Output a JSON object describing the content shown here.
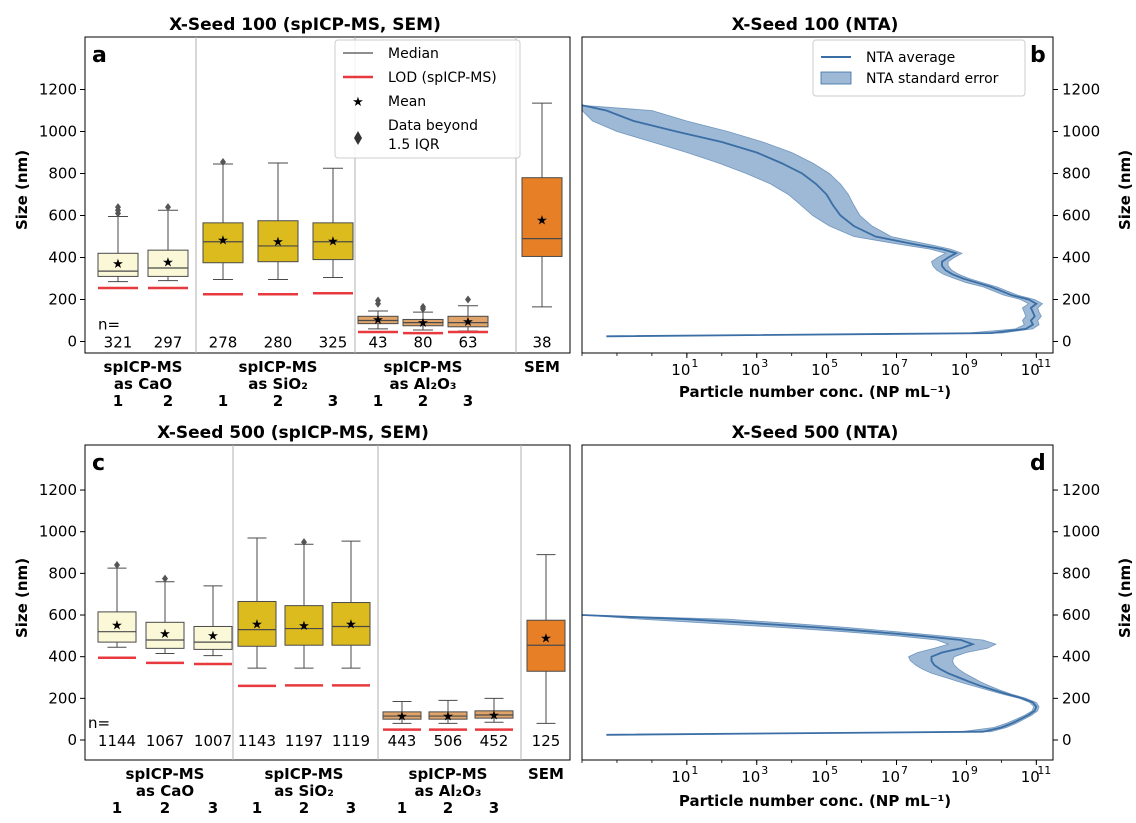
{
  "colors": {
    "cao": "#fbf8d8",
    "sio2": "#dcbb1e",
    "al2o3": "#e0a46a",
    "sem": "#e77f27",
    "lod": "#e8393e",
    "nta_line": "#3a6ea5",
    "nta_fill": "#9db9d5",
    "separator": "#b0b0b0"
  },
  "legend_box": {
    "median": "Median",
    "lod": "LOD (spICP-MS)",
    "mean": "Mean",
    "beyond_line1": "Data beyond",
    "beyond_line2": "1.5 IQR"
  },
  "legend_nta": {
    "average": "NTA average",
    "stderr": "NTA standard error"
  },
  "panels": {
    "a": {
      "label": "a",
      "title": "X-Seed 100 (spICP-MS, SEM)",
      "ylabel": "Size (nm)",
      "n_prefix": "n=",
      "yticks": [
        "0",
        "200",
        "400",
        "600",
        "800",
        "1000",
        "1200"
      ],
      "groups": [
        {
          "line1": "spICP-MS",
          "line2": "as CaO",
          "idx": [
            "1",
            "2"
          ]
        },
        {
          "line1": "spICP-MS",
          "line2": "as SiO₂",
          "idx": [
            "1",
            "2",
            "3"
          ]
        },
        {
          "line1": "spICP-MS",
          "line2": "as Al₂O₃",
          "idx": [
            "1",
            "2",
            "3"
          ]
        },
        {
          "line1": "SEM",
          "line2": "",
          "idx": []
        }
      ]
    },
    "b": {
      "label": "b",
      "title": "X-Seed 100 (NTA)",
      "xlabel": "Particle number conc. (NP mL⁻¹)",
      "ylabel": "Size (nm)",
      "yticks": [
        "0",
        "200",
        "400",
        "600",
        "800",
        "1000",
        "1200"
      ]
    },
    "c": {
      "label": "c",
      "title": "X-Seed 500 (spICP-MS, SEM)",
      "ylabel": "Size (nm)",
      "n_prefix": "n=",
      "yticks": [
        "0",
        "200",
        "400",
        "600",
        "800",
        "1000",
        "1200"
      ],
      "groups": [
        {
          "line1": "spICP-MS",
          "line2": "as CaO",
          "idx": [
            "1",
            "2",
            "3"
          ]
        },
        {
          "line1": "spICP-MS",
          "line2": "as SiO₂",
          "idx": [
            "1",
            "2",
            "3"
          ]
        },
        {
          "line1": "spICP-MS",
          "line2": "as Al₂O₃",
          "idx": [
            "1",
            "2",
            "3"
          ]
        },
        {
          "line1": "SEM",
          "line2": "",
          "idx": []
        }
      ]
    },
    "d": {
      "label": "d",
      "title": "X-Seed 500 (NTA)",
      "xlabel": "Particle number conc. (NP mL⁻¹)",
      "ylabel": "Size (nm)",
      "yticks": [
        "0",
        "200",
        "400",
        "600",
        "800",
        "1000",
        "1200"
      ]
    }
  },
  "chart_data": [
    {
      "panel": "a",
      "type": "box",
      "title": "X-Seed 100 (spICP-MS, SEM)",
      "ylabel": "Size (nm)",
      "ylim": [
        -50,
        1200
      ],
      "boxes": [
        {
          "group": "CaO",
          "index": "1",
          "n": "321",
          "q1": 310,
          "median": 335,
          "q3": 420,
          "whisker_low": 285,
          "whisker_high": 595,
          "mean": 375,
          "lod": 255,
          "outliers": [
            610,
            625,
            640
          ],
          "color": "cao"
        },
        {
          "group": "CaO",
          "index": "2",
          "n": "297",
          "q1": 310,
          "median": 350,
          "q3": 435,
          "whisker_low": 290,
          "whisker_high": 625,
          "mean": 380,
          "lod": 255,
          "outliers": [
            640
          ],
          "color": "cao"
        },
        {
          "group": "SiO2",
          "index": "1",
          "n": "278",
          "q1": 375,
          "median": 475,
          "q3": 565,
          "whisker_low": 295,
          "whisker_high": 845,
          "mean": 485,
          "lod": 225,
          "outliers": [
            855
          ],
          "color": "sio2"
        },
        {
          "group": "SiO2",
          "index": "2",
          "n": "280",
          "q1": 380,
          "median": 455,
          "q3": 575,
          "whisker_low": 295,
          "whisker_high": 850,
          "mean": 478,
          "lod": 225,
          "outliers": [],
          "color": "sio2"
        },
        {
          "group": "SiO2",
          "index": "3",
          "n": "325",
          "q1": 390,
          "median": 475,
          "q3": 565,
          "whisker_low": 305,
          "whisker_high": 825,
          "mean": 482,
          "lod": 230,
          "outliers": [],
          "color": "sio2"
        },
        {
          "group": "Al2O3",
          "index": "1",
          "n": "43",
          "q1": 85,
          "median": 100,
          "q3": 120,
          "whisker_low": 60,
          "whisker_high": 145,
          "mean": 108,
          "lod": 45,
          "outliers": [
            180,
            195
          ],
          "color": "al2o3"
        },
        {
          "group": "Al2O3",
          "index": "2",
          "n": "80",
          "q1": 75,
          "median": 90,
          "q3": 105,
          "whisker_low": 55,
          "whisker_high": 140,
          "mean": 94,
          "lod": 40,
          "outliers": [
            155,
            165
          ],
          "color": "al2o3"
        },
        {
          "group": "Al2O3",
          "index": "3",
          "n": "63",
          "q1": 70,
          "median": 90,
          "q3": 120,
          "whisker_low": 50,
          "whisker_high": 170,
          "mean": 97,
          "lod": 45,
          "outliers": [
            200
          ],
          "color": "al2o3"
        },
        {
          "group": "SEM",
          "index": "",
          "n": "38",
          "q1": 405,
          "median": 490,
          "q3": 780,
          "whisker_low": 165,
          "whisker_high": 1135,
          "mean": 580,
          "lod": null,
          "outliers": [],
          "color": "sem"
        }
      ]
    },
    {
      "panel": "b",
      "type": "area",
      "title": "X-Seed 100 (NTA)",
      "xlabel": "Particle number conc. (NP mL⁻¹)",
      "ylabel": "Size (nm)",
      "xscale": "log",
      "xlim": [
        0.01,
        300000000000
      ],
      "ylim": [
        -50,
        1200
      ],
      "xtick_exponents": [
        1,
        3,
        5,
        7,
        9,
        11
      ],
      "y": [
        25,
        40,
        60,
        80,
        100,
        120,
        140,
        160,
        180,
        200,
        220,
        240,
        260,
        280,
        300,
        320,
        340,
        360,
        380,
        400,
        420,
        440,
        460,
        480,
        500,
        550,
        600,
        650,
        700,
        750,
        800,
        850,
        900,
        950,
        1000,
        1050,
        1100,
        1125
      ],
      "x_mean": [
        0.05,
        5000000000,
        50000000000,
        80000000000,
        70000000000,
        90000000000,
        80000000000,
        70000000000,
        100000000000,
        60000000000,
        20000000000,
        10000000000,
        5000000000,
        2000000000,
        800000000,
        400000000,
        250000000,
        200000000,
        200000000,
        300000000,
        500000000,
        200000000,
        40000000,
        10000000,
        2500000,
        600000,
        250000,
        150000,
        100000,
        50000,
        20000,
        5000,
        1000,
        100,
        5,
        0.3,
        0.05,
        0.01
      ],
      "x_low": [
        0.05,
        1000000000,
        25000000000,
        45000000000,
        40000000000,
        50000000000,
        45000000000,
        40000000000,
        60000000000,
        35000000000,
        12000000000,
        6000000000,
        3000000000,
        1000000000,
        450000000,
        220000000,
        140000000,
        110000000,
        100000000,
        150000000,
        250000000,
        90000000,
        15000000,
        3000000,
        600000,
        120000,
        40000,
        18000,
        8000,
        2500,
        500,
        80,
        10,
        1,
        0.1,
        0.02,
        0.01,
        0.01
      ],
      "x_high": [
        0.05,
        10000000000,
        80000000000,
        120000000000,
        110000000000,
        140000000000,
        120000000000,
        110000000000,
        150000000000,
        90000000000,
        30000000000,
        15000000000,
        7500000000,
        3000000000,
        1200000000,
        600000000,
        380000000,
        300000000,
        300000000,
        450000000,
        750000000,
        350000000,
        100000000,
        25000000,
        7000000,
        2000000,
        900000,
        600000,
        420000,
        250000,
        120000,
        40000,
        10000,
        1500,
        150,
        10,
        1,
        0.01
      ]
    },
    {
      "panel": "c",
      "type": "box",
      "title": "X-Seed 500 (spICP-MS, SEM)",
      "ylabel": "Size (nm)",
      "ylim": [
        -50,
        1200
      ],
      "boxes": [
        {
          "group": "CaO",
          "index": "1",
          "n": "1144",
          "q1": 470,
          "median": 520,
          "q3": 615,
          "whisker_low": 445,
          "whisker_high": 825,
          "mean": 555,
          "lod": 395,
          "outliers": [
            840
          ],
          "color": "cao"
        },
        {
          "group": "CaO",
          "index": "2",
          "n": "1067",
          "q1": 440,
          "median": 480,
          "q3": 565,
          "whisker_low": 415,
          "whisker_high": 760,
          "mean": 513,
          "lod": 370,
          "outliers": [
            775
          ],
          "color": "cao"
        },
        {
          "group": "CaO",
          "index": "3",
          "n": "1007",
          "q1": 435,
          "median": 470,
          "q3": 545,
          "whisker_low": 405,
          "whisker_high": 740,
          "mean": 503,
          "lod": 365,
          "outliers": [],
          "color": "cao"
        },
        {
          "group": "SiO2",
          "index": "1",
          "n": "1143",
          "q1": 450,
          "median": 530,
          "q3": 665,
          "whisker_low": 345,
          "whisker_high": 970,
          "mean": 560,
          "lod": 260,
          "outliers": [],
          "color": "sio2"
        },
        {
          "group": "SiO2",
          "index": "2",
          "n": "1197",
          "q1": 455,
          "median": 535,
          "q3": 645,
          "whisker_low": 345,
          "whisker_high": 940,
          "mean": 553,
          "lod": 262,
          "outliers": [
            950
          ],
          "color": "sio2"
        },
        {
          "group": "SiO2",
          "index": "3",
          "n": "1119",
          "q1": 455,
          "median": 545,
          "q3": 660,
          "whisker_low": 345,
          "whisker_high": 955,
          "mean": 560,
          "lod": 262,
          "outliers": [],
          "color": "sio2"
        },
        {
          "group": "Al2O3",
          "index": "1",
          "n": "443",
          "q1": 100,
          "median": 115,
          "q3": 135,
          "whisker_low": 80,
          "whisker_high": 185,
          "mean": 118,
          "lod": 50,
          "outliers": [],
          "color": "al2o3"
        },
        {
          "group": "Al2O3",
          "index": "2",
          "n": "506",
          "q1": 100,
          "median": 115,
          "q3": 135,
          "whisker_low": 80,
          "whisker_high": 190,
          "mean": 118,
          "lod": 50,
          "outliers": [],
          "color": "al2o3"
        },
        {
          "group": "Al2O3",
          "index": "3",
          "n": "452",
          "q1": 105,
          "median": 120,
          "q3": 140,
          "whisker_low": 85,
          "whisker_high": 200,
          "mean": 122,
          "lod": 50,
          "outliers": [],
          "color": "al2o3"
        },
        {
          "group": "SEM",
          "index": "",
          "n": "125",
          "q1": 330,
          "median": 455,
          "q3": 575,
          "whisker_low": 80,
          "whisker_high": 890,
          "mean": 493,
          "lod": null,
          "outliers": [],
          "color": "sem"
        }
      ]
    },
    {
      "panel": "d",
      "type": "area",
      "title": "X-Seed 500 (NTA)",
      "xlabel": "Particle number conc. (NP mL⁻¹)",
      "ylabel": "Size (nm)",
      "xscale": "log",
      "xlim": [
        0.01,
        300000000000
      ],
      "ylim": [
        -50,
        1200
      ],
      "xtick_exponents": [
        1,
        3,
        5,
        7,
        9,
        11
      ],
      "y": [
        25,
        40,
        60,
        80,
        100,
        120,
        140,
        160,
        180,
        200,
        220,
        240,
        260,
        280,
        300,
        320,
        340,
        360,
        380,
        400,
        420,
        440,
        460,
        480,
        500,
        520,
        540,
        560,
        580,
        600
      ],
      "x_mean": [
        0.05,
        3000000000,
        10000000000,
        20000000000,
        35000000000,
        60000000000,
        90000000000,
        100000000000,
        80000000000,
        40000000000,
        15000000000,
        6000000000,
        2500000000,
        1200000000,
        600000000,
        300000000,
        180000000,
        120000000,
        100000000,
        100000000,
        200000000,
        700000000,
        1500000000,
        700000000,
        50000000,
        2000000,
        60000,
        1000,
        10,
        0.01
      ],
      "x_low": [
        0.05,
        700000000,
        6000000000,
        14000000000,
        26000000000,
        48000000000,
        75000000000,
        85000000000,
        65000000000,
        32000000000,
        11000000000,
        4000000000,
        1500000000,
        600000000,
        250000000,
        100000000,
        55000000,
        35000000,
        25000000,
        22000000,
        40000000,
        120000000,
        300000000,
        140000000,
        10000000,
        300000,
        5000,
        50,
        0.5,
        0.01
      ],
      "x_high": [
        0.05,
        5000000000,
        14000000000,
        27000000000,
        45000000000,
        75000000000,
        110000000000,
        120000000000,
        100000000000,
        50000000000,
        20000000000,
        9000000000,
        4500000000,
        2500000000,
        1500000000,
        900000000,
        600000000,
        450000000,
        400000000,
        450000000,
        1000000000,
        4000000000,
        7000000000,
        3000000000,
        200000000,
        10000000,
        400000,
        10000,
        150,
        0.01
      ]
    }
  ]
}
